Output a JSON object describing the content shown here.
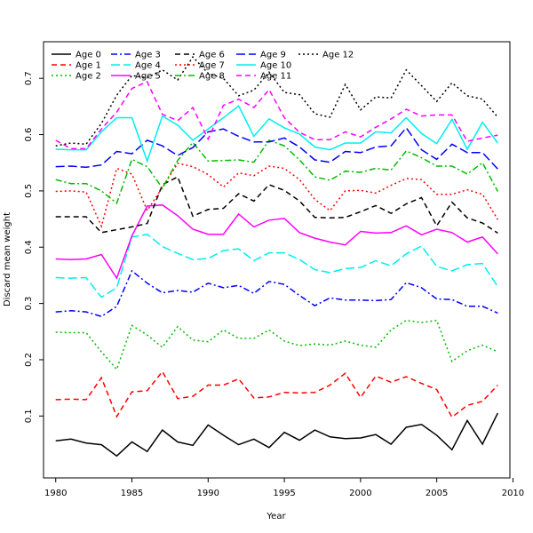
{
  "chart_data": {
    "type": "line",
    "title": "",
    "xlabel": "Year",
    "ylabel": "Discard mean weight",
    "xlim": [
      1979.2,
      2009.8
    ],
    "ylim": [
      -0.01,
      0.765
    ],
    "xticks": [
      1980,
      1985,
      1990,
      1995,
      2000,
      2005,
      2010
    ],
    "yticks": [
      0.1,
      0.2,
      0.3,
      0.4,
      0.5,
      0.6,
      0.7
    ],
    "grid": false,
    "legend_position": "top-left",
    "x": [
      1980,
      1981,
      1982,
      1983,
      1984,
      1985,
      1986,
      1987,
      1988,
      1989,
      1990,
      1991,
      1992,
      1993,
      1994,
      1995,
      1996,
      1997,
      1998,
      1999,
      2000,
      2001,
      2002,
      2003,
      2004,
      2005,
      2006,
      2007,
      2008,
      2009
    ],
    "series": [
      {
        "name": "Age 0",
        "color": "#000000",
        "dash": "solid",
        "values": [
          0.056,
          0.059,
          0.052,
          0.049,
          0.029,
          0.054,
          0.037,
          0.075,
          0.054,
          0.048,
          0.084,
          0.066,
          0.049,
          0.059,
          0.044,
          0.071,
          0.057,
          0.075,
          0.063,
          0.06,
          0.061,
          0.067,
          0.05,
          0.08,
          0.085,
          0.066,
          0.04,
          0.092,
          0.05,
          0.105
        ]
      },
      {
        "name": "Age 1",
        "color": "#ff0000",
        "dash": "dashed",
        "values": [
          0.129,
          0.13,
          0.129,
          0.168,
          0.099,
          0.143,
          0.145,
          0.179,
          0.131,
          0.135,
          0.155,
          0.155,
          0.166,
          0.132,
          0.134,
          0.142,
          0.141,
          0.142,
          0.155,
          0.176,
          0.133,
          0.171,
          0.16,
          0.17,
          0.158,
          0.147,
          0.098,
          0.119,
          0.126,
          0.155
        ]
      },
      {
        "name": "Age 2",
        "color": "#00bb00",
        "dash": "dotted",
        "values": [
          0.249,
          0.248,
          0.248,
          0.214,
          0.183,
          0.261,
          0.244,
          0.222,
          0.259,
          0.235,
          0.232,
          0.253,
          0.238,
          0.238,
          0.253,
          0.233,
          0.225,
          0.228,
          0.226,
          0.233,
          0.226,
          0.222,
          0.253,
          0.27,
          0.266,
          0.27,
          0.197,
          0.216,
          0.226,
          0.214
        ]
      },
      {
        "name": "Age 3",
        "color": "#0000ff",
        "dash": "dashdot",
        "values": [
          0.285,
          0.287,
          0.285,
          0.277,
          0.295,
          0.358,
          0.336,
          0.319,
          0.323,
          0.32,
          0.336,
          0.328,
          0.332,
          0.318,
          0.339,
          0.334,
          0.314,
          0.296,
          0.31,
          0.306,
          0.306,
          0.305,
          0.307,
          0.337,
          0.328,
          0.308,
          0.307,
          0.295,
          0.295,
          0.283
        ]
      },
      {
        "name": "Age 4",
        "color": "#00eeee",
        "dash": "longdash",
        "values": [
          0.346,
          0.345,
          0.346,
          0.311,
          0.328,
          0.418,
          0.423,
          0.401,
          0.389,
          0.378,
          0.38,
          0.394,
          0.397,
          0.376,
          0.39,
          0.39,
          0.378,
          0.36,
          0.355,
          0.362,
          0.364,
          0.376,
          0.367,
          0.388,
          0.402,
          0.366,
          0.358,
          0.369,
          0.371,
          0.33
        ]
      },
      {
        "name": "Age 5",
        "color": "#ff00ff",
        "dash": "solid",
        "values": [
          0.379,
          0.378,
          0.379,
          0.387,
          0.345,
          0.42,
          0.473,
          0.475,
          0.456,
          0.432,
          0.423,
          0.423,
          0.459,
          0.436,
          0.448,
          0.451,
          0.426,
          0.416,
          0.409,
          0.404,
          0.428,
          0.425,
          0.426,
          0.438,
          0.422,
          0.432,
          0.426,
          0.409,
          0.418,
          0.388
        ]
      },
      {
        "name": "Age 6",
        "color": "#000000",
        "dash": "dashed",
        "values": [
          0.454,
          0.454,
          0.454,
          0.426,
          0.431,
          0.436,
          0.442,
          0.511,
          0.525,
          0.455,
          0.467,
          0.469,
          0.495,
          0.482,
          0.511,
          0.501,
          0.482,
          0.453,
          0.452,
          0.453,
          0.463,
          0.474,
          0.46,
          0.477,
          0.488,
          0.438,
          0.48,
          0.452,
          0.443,
          0.425
        ]
      },
      {
        "name": "Age 7",
        "color": "#ff0000",
        "dash": "dotted",
        "values": [
          0.499,
          0.5,
          0.498,
          0.437,
          0.54,
          0.53,
          0.465,
          0.506,
          0.549,
          0.543,
          0.529,
          0.507,
          0.532,
          0.527,
          0.544,
          0.54,
          0.52,
          0.485,
          0.465,
          0.5,
          0.501,
          0.496,
          0.51,
          0.522,
          0.52,
          0.494,
          0.494,
          0.502,
          0.494,
          0.449
        ]
      },
      {
        "name": "Age 8",
        "color": "#00bb00",
        "dash": "dashdot",
        "values": [
          0.52,
          0.513,
          0.513,
          0.5,
          0.478,
          0.556,
          0.543,
          0.505,
          0.554,
          0.586,
          0.553,
          0.554,
          0.555,
          0.551,
          0.59,
          0.58,
          0.555,
          0.525,
          0.519,
          0.535,
          0.533,
          0.54,
          0.537,
          0.571,
          0.559,
          0.544,
          0.544,
          0.53,
          0.55,
          0.499
        ]
      },
      {
        "name": "Age 9",
        "color": "#0000ff",
        "dash": "longdash",
        "values": [
          0.543,
          0.544,
          0.542,
          0.546,
          0.57,
          0.566,
          0.59,
          0.58,
          0.563,
          0.577,
          0.605,
          0.61,
          0.597,
          0.587,
          0.587,
          0.594,
          0.578,
          0.555,
          0.551,
          0.57,
          0.568,
          0.578,
          0.58,
          0.612,
          0.573,
          0.556,
          0.583,
          0.568,
          0.568,
          0.539
        ]
      },
      {
        "name": "Age 10",
        "color": "#00eeee",
        "dash": "solid",
        "values": [
          0.574,
          0.573,
          0.573,
          0.605,
          0.63,
          0.63,
          0.553,
          0.633,
          0.617,
          0.59,
          0.61,
          0.63,
          0.651,
          0.597,
          0.628,
          0.612,
          0.601,
          0.578,
          0.573,
          0.585,
          0.585,
          0.605,
          0.603,
          0.63,
          0.602,
          0.584,
          0.627,
          0.574,
          0.622,
          0.585
        ]
      },
      {
        "name": "Age 11",
        "color": "#ff00ff",
        "dash": "dashed",
        "values": [
          0.59,
          0.575,
          0.575,
          0.61,
          0.64,
          0.682,
          0.694,
          0.636,
          0.625,
          0.648,
          0.592,
          0.652,
          0.663,
          0.648,
          0.68,
          0.63,
          0.604,
          0.591,
          0.591,
          0.605,
          0.596,
          0.613,
          0.628,
          0.645,
          0.633,
          0.635,
          0.635,
          0.588,
          0.594,
          0.599
        ]
      },
      {
        "name": "Age 12",
        "color": "#000000",
        "dash": "dotted",
        "values": [
          0.58,
          0.585,
          0.583,
          0.62,
          0.67,
          0.705,
          0.701,
          0.715,
          0.697,
          0.738,
          0.709,
          0.7,
          0.669,
          0.679,
          0.711,
          0.675,
          0.671,
          0.637,
          0.631,
          0.689,
          0.644,
          0.667,
          0.665,
          0.715,
          0.687,
          0.659,
          0.692,
          0.669,
          0.663,
          0.631
        ]
      }
    ]
  }
}
